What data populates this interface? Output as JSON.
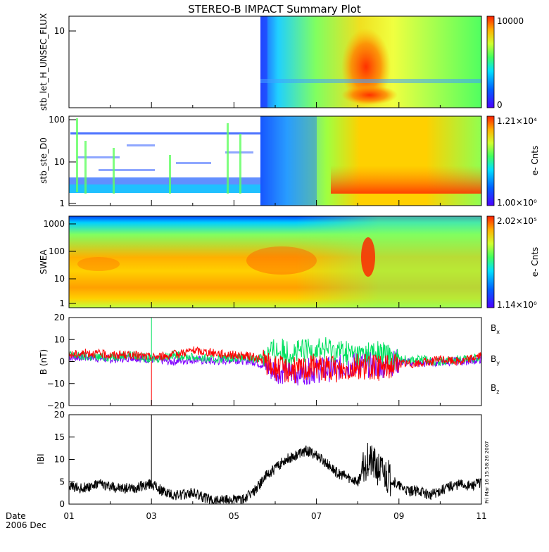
{
  "title": "STEREO-B IMPACT Summary Plot",
  "footer": {
    "date_label": "Date",
    "date_value": "2006 Dec",
    "stamp": "Fri Mar 16 15:58:26 2007"
  },
  "x_ticks": [
    "01",
    "03",
    "05",
    "07",
    "09",
    "11"
  ],
  "colors": {
    "bx": "#8000ff",
    "by": "#00e060",
    "bz": "#ff0000",
    "line": "#000000"
  },
  "chart_data": [
    {
      "type": "heatmap",
      "ylabel": "stb_let_H_UNSEC_FLUX",
      "y_ticks": [
        "10"
      ],
      "yscale": "log",
      "colorbar": {
        "min_label": "0",
        "max_label": "10000",
        "units": ""
      },
      "x_range": [
        1,
        11
      ]
    },
    {
      "type": "heatmap",
      "ylabel": "stb_ste_D0",
      "y_ticks": [
        "100",
        "10",
        "1"
      ],
      "yscale": "log",
      "colorbar": {
        "min_label": "1.00×10⁰",
        "max_label": "1.21×10⁴",
        "units": "e- Cnts"
      },
      "x_range": [
        1,
        11
      ]
    },
    {
      "type": "heatmap",
      "ylabel": "SWEA",
      "y_ticks": [
        "1000",
        "100",
        "10",
        "1"
      ],
      "yscale": "log",
      "colorbar": {
        "min_label": "1.14×10⁰",
        "max_label": "2.02×10⁵",
        "units": "e- Cnts"
      },
      "x_range": [
        1,
        11
      ]
    },
    {
      "type": "line",
      "ylabel": "B (nT)",
      "y_ticks": [
        "20",
        "10",
        "0",
        "−10",
        "−20"
      ],
      "ylim": [
        -20,
        20
      ],
      "x_range": [
        1,
        11
      ],
      "legend": [
        "B",
        "B",
        "B"
      ],
      "legend_sub": [
        "x",
        "y",
        "z"
      ],
      "series": [
        {
          "component": "x",
          "x": [
            1,
            1.5,
            2,
            2.5,
            3,
            3.5,
            4,
            4.5,
            5,
            5.5,
            6,
            6.5,
            7,
            7.5,
            8,
            8.5,
            9,
            9.5,
            10,
            10.5,
            11
          ],
          "values": [
            2,
            2,
            1,
            2,
            1,
            0,
            1,
            0,
            1,
            0,
            -4,
            -5,
            -4,
            -3,
            -1,
            -2,
            0,
            -1,
            0,
            0,
            1
          ]
        },
        {
          "component": "y",
          "x": [
            1,
            1.5,
            2,
            2.5,
            3,
            3.5,
            4,
            4.5,
            5,
            5.5,
            6,
            6.5,
            7,
            7.5,
            8,
            8.5,
            9,
            9.5,
            10,
            10.5,
            11
          ],
          "values": [
            3,
            2,
            2,
            3,
            1,
            3,
            2,
            1,
            2,
            1,
            5,
            4,
            6,
            5,
            3,
            4,
            1,
            1,
            0,
            1,
            2
          ]
        },
        {
          "component": "z",
          "x": [
            1,
            1.5,
            2,
            2.5,
            3,
            3.5,
            4,
            4.5,
            5,
            5.5,
            6,
            6.5,
            7,
            7.5,
            8,
            8.5,
            9,
            9.5,
            10,
            10.5,
            11
          ],
          "values": [
            3,
            4,
            3,
            3,
            2,
            3,
            5,
            4,
            3,
            2,
            -3,
            -4,
            -2,
            -4,
            -2,
            -3,
            -1,
            -1,
            1,
            0,
            3
          ]
        }
      ],
      "spike": {
        "x": 3.0,
        "min": -20,
        "max": 20
      }
    },
    {
      "type": "line",
      "ylabel": "IBI",
      "y_ticks": [
        "20",
        "15",
        "10",
        "5",
        "0"
      ],
      "ylim": [
        0,
        20
      ],
      "x_range": [
        1,
        11
      ],
      "series": [
        {
          "x": [
            1,
            1.25,
            1.5,
            1.75,
            2,
            2.25,
            2.5,
            2.75,
            3,
            3.25,
            3.5,
            3.75,
            4,
            4.25,
            4.5,
            4.75,
            5,
            5.25,
            5.5,
            5.75,
            6,
            6.25,
            6.5,
            6.75,
            7,
            7.25,
            7.5,
            7.75,
            8,
            8.25,
            8.5,
            8.75,
            9,
            9.25,
            9.5,
            9.75,
            10,
            10.25,
            10.5,
            10.75,
            11
          ],
          "values": [
            4,
            3.5,
            4,
            4.5,
            4,
            3.5,
            3.5,
            4,
            4.5,
            3,
            2,
            2,
            2.5,
            1.5,
            1,
            1,
            1,
            1,
            3,
            6,
            8,
            10,
            11,
            12,
            11,
            9,
            7,
            6,
            5,
            10,
            8,
            6,
            4,
            3,
            3,
            2,
            3,
            4,
            4.5,
            4,
            5
          ]
        }
      ],
      "spike": {
        "x": 3.0,
        "value": 20
      }
    }
  ]
}
